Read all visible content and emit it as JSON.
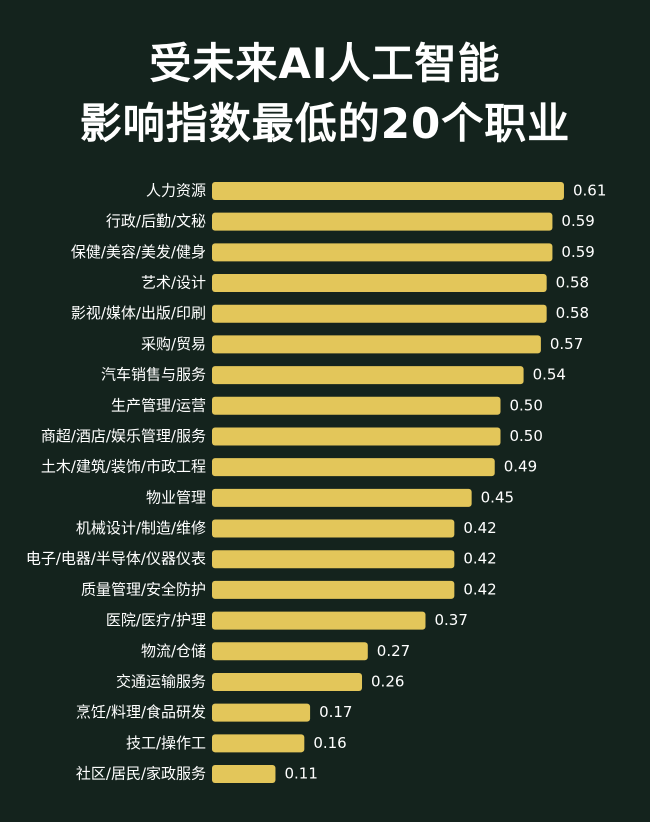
{
  "title_line1": "受未来AI人工智能",
  "title_line2": "影响指数最低的20个职业",
  "colors": {
    "background": "#14231d",
    "bar": "#e3c65a",
    "text": "#ffffff"
  },
  "chart_data": {
    "type": "bar",
    "orientation": "horizontal",
    "title": "受未来AI人工智能影响指数最低的20个职业",
    "categories": [
      "人力资源",
      "行政/后勤/文秘",
      "保健/美容/美发/健身",
      "艺术/设计",
      "影视/媒体/出版/印刷",
      "采购/贸易",
      "汽车销售与服务",
      "生产管理/运营",
      "商超/酒店/娱乐管理/服务",
      "土木/建筑/装饰/市政工程",
      "物业管理",
      "机械设计/制造/维修",
      "电子/电器/半导体/仪器仪表",
      "质量管理/安全防护",
      "医院/医疗/护理",
      "物流/仓储",
      "交通运输服务",
      "烹饪/料理/食品研发",
      "技工/操作工",
      "社区/居民/家政服务"
    ],
    "values": [
      0.61,
      0.59,
      0.59,
      0.58,
      0.58,
      0.57,
      0.54,
      0.5,
      0.5,
      0.49,
      0.45,
      0.42,
      0.42,
      0.42,
      0.37,
      0.27,
      0.26,
      0.17,
      0.16,
      0.11
    ],
    "value_labels": [
      "0.61",
      "0.59",
      "0.59",
      "0.58",
      "0.58",
      "0.57",
      "0.54",
      "0.50",
      "0.50",
      "0.49",
      "0.45",
      "0.42",
      "0.42",
      "0.42",
      "0.37",
      "0.27",
      "0.26",
      "0.17",
      "0.16",
      "0.11"
    ],
    "grid": false,
    "legend": "none"
  }
}
